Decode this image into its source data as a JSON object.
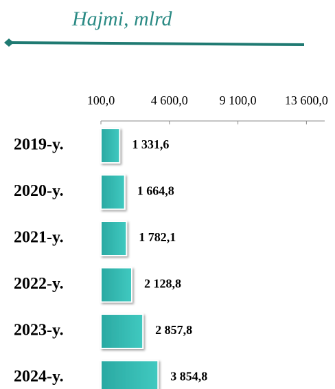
{
  "chart_data": {
    "type": "bar",
    "orientation": "horizontal",
    "title": "Hajmi, mlrd",
    "categories": [
      "2019-y.",
      "2020-y.",
      "2021-y.",
      "2022-y.",
      "2023-y.",
      "2024-y."
    ],
    "values": [
      1331.6,
      1664.8,
      1782.1,
      2128.8,
      2857.8,
      3854.8
    ],
    "value_labels": [
      "1 331,6",
      "1 664,8",
      "1 782,1",
      "2 128,8",
      "2 857,8",
      "3 854,8"
    ],
    "color": "#33bab2",
    "xlim": [
      100,
      14800
    ],
    "xticks": [
      {
        "value": 100,
        "label": "100,0"
      },
      {
        "value": 4600,
        "label": "4 600,0"
      },
      {
        "value": 9100,
        "label": "9 100,0"
      },
      {
        "value": 13600,
        "label": "13 600,0"
      }
    ]
  }
}
